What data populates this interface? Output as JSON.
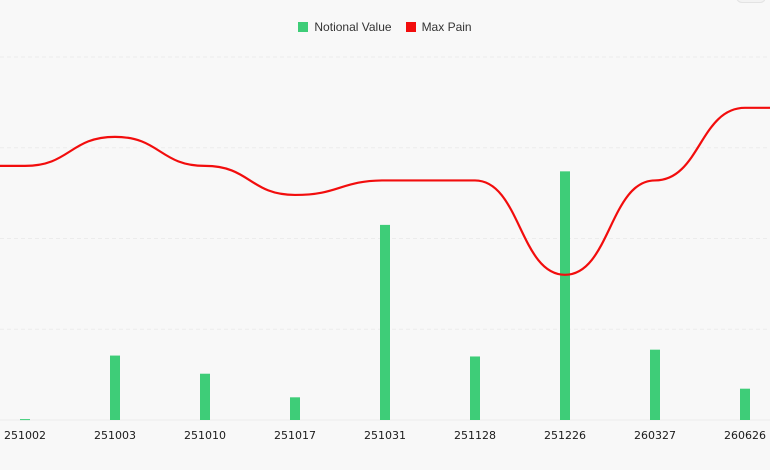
{
  "legend": {
    "notional_label": "Notional Value",
    "maxpain_label": "Max Pain"
  },
  "colors": {
    "notional": "#3ecd78",
    "maxpain": "#f20d0d",
    "grid": "#ececec",
    "text": "#1a1a1a"
  },
  "chart_data": {
    "type": "bar+line",
    "categories": [
      "251002",
      "251003",
      "251010",
      "251017",
      "251031",
      "251128",
      "251226",
      "260327",
      "260626"
    ],
    "series": [
      {
        "name": "Notional Value",
        "type": "bar",
        "values": [
          0.2,
          14.2,
          10.2,
          5.0,
          43.0,
          14.0,
          54.8,
          15.5,
          6.9
        ]
      },
      {
        "name": "Max Pain",
        "type": "line",
        "values": [
          105000,
          109000,
          105000,
          101000,
          103000,
          103000,
          90000,
          103000,
          113000
        ]
      }
    ],
    "bar_ylim": [
      0,
      80
    ],
    "line_ylim": [
      70000,
      120000
    ],
    "grid": true,
    "legend_position": "top-center"
  }
}
